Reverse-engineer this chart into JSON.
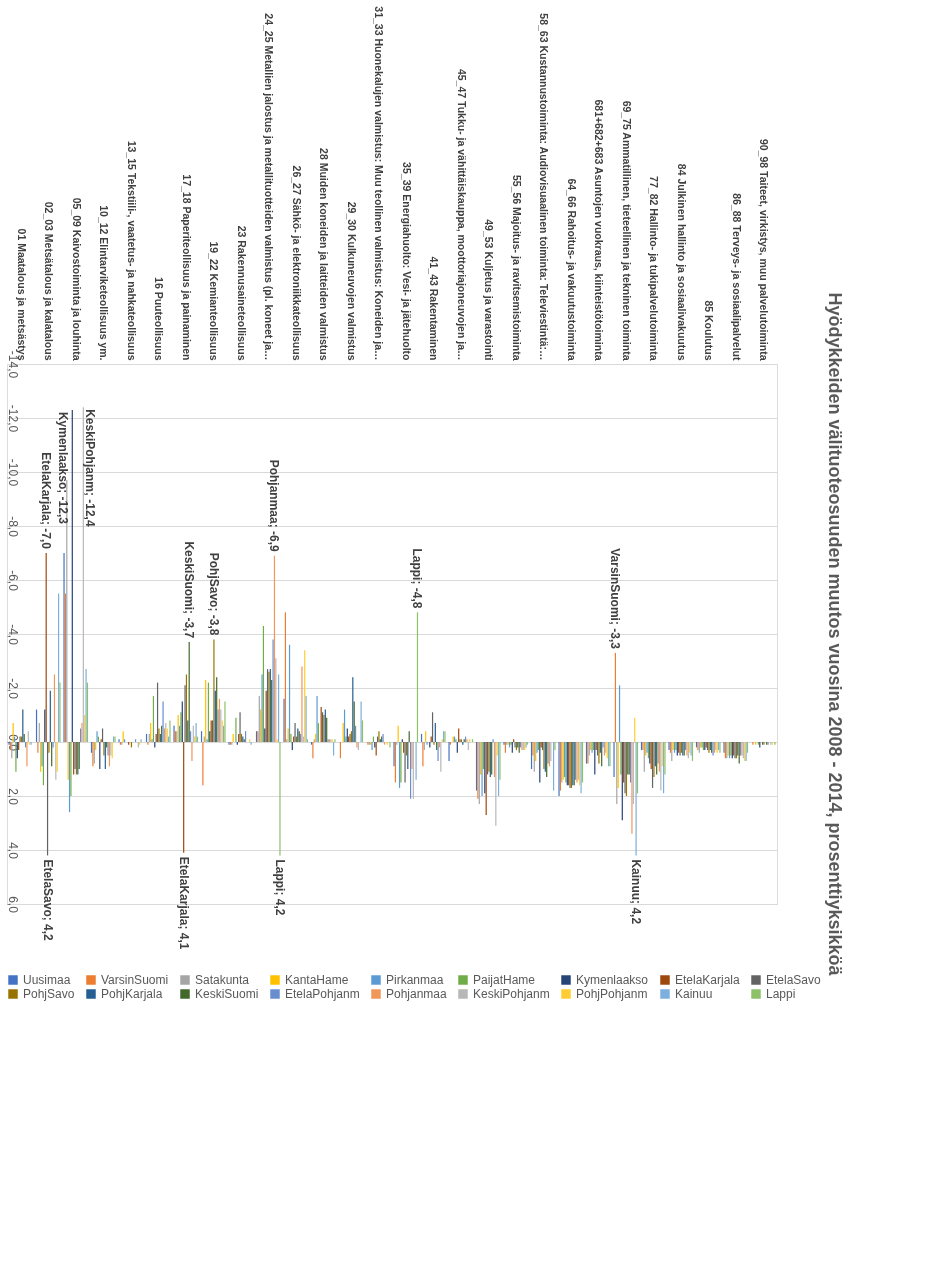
{
  "chart_data": {
    "type": "bar",
    "title": "Hyödykkeiden välituoteosuuden muutos vuosina 2008 - 2014, prosenttiyksikköä",
    "categories": [
      "01 Maatalous ja metsästys",
      "02_03 Metsätalous ja kalatalous",
      "05_09 Kaivostoiminta ja louhinta",
      "10_12 Elintarviketeollisuus ym.",
      "13_15 Tekstiili-, vaatetus- ja nahkateollisuus",
      "16 Puuteollisuus",
      "17_18 Paperiteollisuus ja painaminen",
      "19_22 Kemianteollisuus",
      "23 Rakennusaineteollisuus",
      "24_25 Metallien jalostus ja metallituotteiden valmistus (pl. koneet ja…",
      "26_27 Sähkö- ja elektroniikkateollisuus",
      "28 Muiden koneiden ja laitteiden valmistus",
      "29_30 Kulkuneuvojen valmistus",
      "31_33 Huonekalujen valmistus: Muu teollinen valmistus: Koneiden ja…",
      "35_39 Energiahuolto: Vesi- ja jätehuolto",
      "41_43 Rakentaminen",
      "45_47 Tukku- ja vähittäiskauppa, moottoriajoneuvojen ja…",
      "49_53 Kuljetus ja varastointi",
      "55_56 Majoitus- ja ravitsemistoiminta",
      "58_63 Kustannustoiminta: Audiovisuaalinen toiminta: Televiestintä:…",
      "64_66 Rahoitus- ja vakuutustoiminta",
      "681+682+683 Asuntojen vuokraus, kiinteistötoiminta",
      "69_75 Ammatillinen, tieteellinen ja tekninen toiminta",
      "77_82 Hallinto- ja tukipalvelutoiminta",
      "84 Julkinen hallinto ja sosiaalivakuutus",
      "85 Koulutus",
      "86_88 Terveys- ja sosiaalipalvelut",
      "90_98 Taiteet, virkistys, muu palvelutoiminta"
    ],
    "series": [
      {
        "name": "Uusimaa",
        "color": "#4472c4",
        "values": [
          0.1,
          -1.2,
          -7.0,
          0.4,
          -0.1,
          -0.3,
          -0.6,
          -0.4,
          0.1,
          -0.4,
          -1.6,
          0.1,
          0.0,
          0.0,
          0.9,
          -0.3,
          0.7,
          1.8,
          0.1,
          1.0,
          2.0,
          0.8,
          1.3,
          0.3,
          0.3,
          0.2,
          0.4,
          0.0
        ]
      },
      {
        "name": "VarsinSuomi",
        "color": "#ed7d31",
        "values": [
          0.3,
          0.4,
          -5.5,
          0.9,
          0.1,
          0.1,
          -0.4,
          1.6,
          0.1,
          -0.4,
          -4.8,
          0.6,
          0.6,
          0.1,
          1.5,
          0.9,
          0.1,
          2.1,
          0.4,
          0.5,
          1.8,
          0.8,
          -3.3,
          0.3,
          0.4,
          0.3,
          0.6,
          0.1
        ],
        "value_labels": [
          null,
          null,
          null,
          null,
          null,
          null,
          null,
          null,
          null,
          null,
          null,
          null,
          null,
          null,
          null,
          null,
          null,
          null,
          null,
          null,
          null,
          null,
          "VarsinSuomi; -3,3",
          null,
          null,
          null,
          null,
          null
        ]
      },
      {
        "name": "Satakunta",
        "color": "#a5a5a5",
        "values": [
          0.6,
          -0.7,
          -9.7,
          0.8,
          0.1,
          -0.3,
          -0.4,
          -0.2,
          0.1,
          -1.7,
          -0.1,
          -0.1,
          0.0,
          0.1,
          0.1,
          0.3,
          0.0,
          2.3,
          0.1,
          1.1,
          1.5,
          0.5,
          2.3,
          1.1,
          0.7,
          0.4,
          0.6,
          0.0
        ]
      },
      {
        "name": "KantaHame",
        "color": "#ffc000",
        "values": [
          -0.7,
          1.1,
          1.4,
          0.3,
          -0.4,
          -0.7,
          -1.0,
          -2.3,
          -0.3,
          -1.2,
          -0.5,
          -0.3,
          -0.7,
          0.1,
          -0.6,
          -0.4,
          -0.2,
          1.2,
          0.1,
          0.7,
          1.4,
          0.3,
          1.7,
          0.5,
          0.3,
          0.2,
          0.5,
          0.1
        ]
      },
      {
        "name": "Pirkanmaa",
        "color": "#5b9bd5",
        "values": [
          -0.2,
          0.9,
          2.6,
          -0.4,
          -0.1,
          -0.1,
          -0.6,
          -0.1,
          0.0,
          -2.5,
          -3.6,
          -1.7,
          -1.2,
          0.3,
          1.7,
          0.1,
          -0.2,
          2.0,
          0.2,
          0.4,
          1.3,
          0.4,
          -2.1,
          0.4,
          0.4,
          0.2,
          0.6,
          0.0
        ]
      },
      {
        "name": "PaijatHame",
        "color": "#70ad47",
        "values": [
          1.1,
          1.6,
          2.0,
          -0.2,
          0.0,
          -1.7,
          -1.1,
          -2.2,
          -0.9,
          -4.3,
          -0.3,
          -0.7,
          -0.2,
          -0.2,
          1.5,
          0.0,
          -0.1,
          1.0,
          0.1,
          0.3,
          1.5,
          0.3,
          1.2,
          0.6,
          0.3,
          0.3,
          0.5,
          0.1
        ]
      },
      {
        "name": "Kymenlaakso",
        "color": "#264478",
        "values": [
          0.6,
          -1.2,
          -12.3,
          1.0,
          0.0,
          0.2,
          -1.5,
          -0.4,
          0.1,
          -0.5,
          0.3,
          0.0,
          -0.5,
          0.2,
          -0.1,
          0.2,
          0.4,
          1.9,
          0.4,
          1.5,
          1.6,
          1.2,
          2.9,
          0.8,
          0.5,
          0.3,
          0.6,
          0.2
        ],
        "value_labels": [
          null,
          null,
          "Kymenlaakso; -12,3",
          null,
          null,
          null,
          null,
          null,
          null,
          null,
          null,
          null,
          null,
          null,
          null,
          null,
          null,
          null,
          null,
          null,
          null,
          null,
          null,
          null,
          null,
          null,
          null,
          null
        ]
      },
      {
        "name": "EtelaKarjala",
        "color": "#9e480e",
        "values": [
          0.3,
          -7.0,
          1.2,
          -0.1,
          0.1,
          -0.3,
          4.1,
          -0.8,
          -0.3,
          -1.9,
          -0.2,
          -1.3,
          -0.2,
          0.5,
          0.4,
          -0.2,
          -0.5,
          2.7,
          -0.1,
          0.2,
          1.6,
          0.3,
          1.5,
          1.0,
          0.4,
          0.2,
          0.5,
          0.0
        ],
        "value_labels": [
          null,
          "EtelaKarjala; -7,0",
          null,
          null,
          null,
          null,
          "EtelaKarjala; 4,1",
          null,
          null,
          null,
          null,
          null,
          null,
          null,
          null,
          null,
          null,
          null,
          null,
          null,
          null,
          null,
          null,
          null,
          null,
          null,
          null,
          null
        ]
      },
      {
        "name": "EtelaSavo",
        "color": "#636363",
        "values": [
          -0.2,
          4.2,
          1.0,
          -0.5,
          0.0,
          -2.2,
          -2.1,
          -0.8,
          -1.1,
          -2.7,
          -0.7,
          -1.1,
          -0.3,
          -0.2,
          1.5,
          -1.1,
          -0.1,
          1.2,
          0.2,
          0.3,
          1.7,
          0.5,
          1.9,
          1.7,
          0.5,
          0.3,
          0.6,
          0.1
        ],
        "value_labels": [
          null,
          "EtelaSavo; 4,2",
          null,
          null,
          null,
          null,
          null,
          null,
          null,
          null,
          null,
          null,
          null,
          null,
          null,
          null,
          null,
          null,
          null,
          null,
          null,
          null,
          null,
          null,
          null,
          null,
          null,
          null
        ]
      },
      {
        "name": "PohjSavo",
        "color": "#997300",
        "values": [
          -0.2,
          0.4,
          1.2,
          0.5,
          0.2,
          -0.5,
          -2.5,
          -3.8,
          -0.3,
          -2.6,
          -0.2,
          -1.0,
          -0.4,
          -0.4,
          0.5,
          0.1,
          -0.1,
          1.1,
          0.3,
          1.0,
          1.7,
          0.8,
          2.0,
          1.3,
          0.4,
          0.4,
          0.6,
          0.1
        ],
        "value_labels": [
          null,
          null,
          null,
          null,
          null,
          null,
          null,
          "PohjSavo; -3,8",
          null,
          null,
          null,
          null,
          null,
          null,
          null,
          null,
          null,
          null,
          null,
          null,
          null,
          null,
          null,
          null,
          null,
          null,
          null,
          null
        ]
      },
      {
        "name": "PohjKarjala",
        "color": "#255e91",
        "values": [
          -1.2,
          -1.9,
          1.2,
          1.0,
          0.0,
          -0.3,
          -0.8,
          -1.9,
          -0.2,
          -2.7,
          -0.5,
          -1.2,
          -2.4,
          -0.1,
          1.0,
          -0.7,
          0.1,
          1.3,
          0.2,
          1.1,
          1.6,
          0.4,
          1.2,
          0.9,
          0.5,
          0.3,
          0.5,
          0.0
        ]
      },
      {
        "name": "KeskiSuomi",
        "color": "#43682b",
        "values": [
          -0.3,
          0.9,
          1.0,
          0.2,
          0.0,
          -0.6,
          -3.7,
          -2.4,
          -0.1,
          -2.3,
          -0.4,
          -0.9,
          -1.5,
          -0.2,
          -0.4,
          0.3,
          -0.1,
          1.2,
          0.4,
          1.3,
          1.6,
          0.9,
          1.2,
          1.2,
          0.5,
          0.4,
          0.8,
          0.1
        ],
        "value_labels": [
          null,
          null,
          null,
          null,
          null,
          null,
          "KeskiSuomi; -3,7",
          null,
          null,
          null,
          null,
          null,
          null,
          null,
          null,
          null,
          null,
          null,
          null,
          null,
          null,
          null,
          null,
          null,
          null,
          null,
          null,
          null
        ]
      },
      {
        "name": "EtelaPohjanm",
        "color": "#698ed0",
        "values": [
          0.2,
          0.2,
          -0.5,
          0.5,
          -0.1,
          -1.5,
          -0.4,
          -1.2,
          -0.4,
          -3.8,
          -0.3,
          -0.1,
          -0.6,
          -0.3,
          2.1,
          0.7,
          -0.2,
          -0.1,
          0.2,
          0.8,
          1.4,
          0.2,
          1.5,
          0.8,
          0.3,
          0.5,
          0.5,
          0.1
        ]
      },
      {
        "name": "Pohjanmaa",
        "color": "#f1975a",
        "values": [
          0.9,
          -2.5,
          -0.7,
          0.9,
          0.0,
          -0.5,
          0.7,
          -1.6,
          0.0,
          -6.9,
          -2.8,
          -0.1,
          0.2,
          0.1,
          1.0,
          0.2,
          -0.1,
          1.3,
          0.3,
          0.9,
          1.5,
          0.5,
          3.4,
          1.1,
          0.5,
          0.4,
          0.5,
          0.0
        ],
        "value_labels": [
          null,
          null,
          null,
          null,
          null,
          null,
          null,
          null,
          null,
          "Pohjanmaa; -6,9",
          null,
          null,
          null,
          null,
          null,
          null,
          null,
          null,
          null,
          null,
          null,
          null,
          null,
          null,
          null,
          null,
          null,
          null
        ]
      },
      {
        "name": "KeskiPohjanm",
        "color": "#b7b7b7",
        "values": [
          -0.4,
          1.4,
          -12.4,
          0.5,
          0.2,
          -0.7,
          -0.6,
          -1.2,
          0.0,
          -3.1,
          -0.2,
          -0.1,
          0.3,
          0.0,
          2.1,
          1.1,
          0.3,
          3.1,
          0.3,
          0.7,
          1.4,
          0.4,
          2.3,
          1.8,
          0.6,
          0.3,
          0.6,
          0.1
        ],
        "value_labels": [
          null,
          null,
          "KeskiPohjanm; -12,4",
          null,
          null,
          null,
          null,
          null,
          null,
          null,
          null,
          null,
          null,
          null,
          null,
          null,
          null,
          null,
          null,
          null,
          null,
          null,
          null,
          null,
          null,
          null,
          null,
          null
        ]
      },
      {
        "name": "PohjPohjanm",
        "color": "#ffcd33",
        "values": [
          0.1,
          1.1,
          -1.0,
          0.6,
          0.1,
          -0.5,
          -0.2,
          -0.8,
          -0.1,
          -0.1,
          -3.4,
          -0.1,
          0.0,
          0.1,
          0.0,
          -0.1,
          -0.1,
          0.5,
          0.3,
          0.0,
          1.6,
          0.6,
          -0.9,
          0.9,
          0.4,
          0.4,
          0.7,
          0.1
        ]
      },
      {
        "name": "Kainuu",
        "color": "#7cafdd",
        "values": [
          0.1,
          -5.5,
          -2.7,
          -0.2,
          -0.1,
          -0.2,
          -0.7,
          -0.6,
          0.1,
          -2.5,
          -1.7,
          0.5,
          -1.5,
          0.0,
          1.4,
          -0.4,
          0.0,
          2.0,
          0.2,
          1.8,
          1.9,
          0.9,
          4.2,
          1.9,
          0.5,
          0.3,
          0.7,
          0.0
        ],
        "value_labels": [
          null,
          null,
          null,
          null,
          null,
          null,
          null,
          null,
          null,
          null,
          null,
          null,
          null,
          null,
          null,
          null,
          null,
          null,
          null,
          null,
          null,
          null,
          "Kainuu; 4,2",
          null,
          null,
          null,
          null,
          null
        ]
      },
      {
        "name": "Lappi",
        "color": "#8cc168",
        "values": [
          0.0,
          -2.2,
          -2.2,
          -0.2,
          0.0,
          -0.8,
          -0.2,
          -1.5,
          0.0,
          4.2,
          -0.1,
          -0.1,
          -0.8,
          0.2,
          -4.8,
          -0.4,
          -0.1,
          1.4,
          0.1,
          0.3,
          1.5,
          0.9,
          1.9,
          1.2,
          0.7,
          0.4,
          0.4,
          0.1
        ],
        "value_labels": [
          null,
          null,
          null,
          null,
          null,
          null,
          null,
          null,
          null,
          "Lappi; 4,2",
          null,
          null,
          null,
          null,
          "Lappi; -4,8",
          null,
          null,
          null,
          null,
          null,
          null,
          null,
          null,
          null,
          null,
          null,
          null,
          null
        ]
      }
    ],
    "ylim": [
      6,
      -14
    ],
    "yticks": [
      {
        "value": -14,
        "label": "-14,0"
      },
      {
        "value": -12,
        "label": "-12,0"
      },
      {
        "value": -10,
        "label": "-10,0"
      },
      {
        "value": -8,
        "label": "-8,0"
      },
      {
        "value": -6,
        "label": "-6,0"
      },
      {
        "value": -4,
        "label": "-4,0"
      },
      {
        "value": -2,
        "label": "-2,0"
      },
      {
        "value": 0,
        "label": "0,0"
      },
      {
        "value": 2,
        "label": "2,0"
      },
      {
        "value": 4,
        "label": "4,0"
      },
      {
        "value": 6,
        "label": "6,0"
      }
    ],
    "grid": "y",
    "legend": "bottom"
  }
}
